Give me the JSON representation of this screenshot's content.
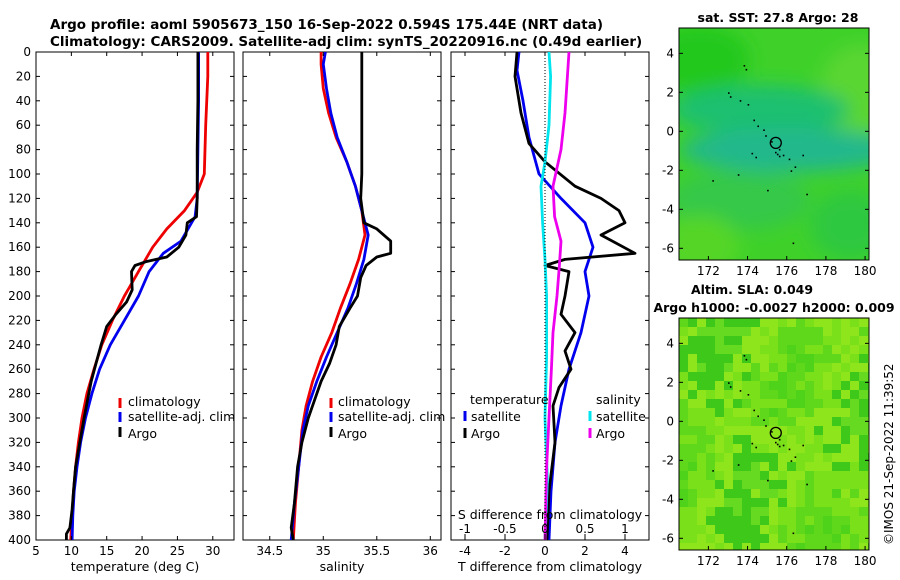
{
  "header": {
    "title_line1": "Argo profile: aoml 5905673_150 16-Sep-2022 0.594S 175.44E (NRT data)",
    "title_line2": "Climatology: CARS2009. Satellite-adj clim: synTS_20220916.nc (0.49d earlier)"
  },
  "watermark": "©IMOS 21-Sep-2022 11:39:52",
  "colors": {
    "climatology": "#ee0000",
    "satellite": "#0000ee",
    "argo": "#000000",
    "sat_salinity": "#00e5ee",
    "argo_salinity": "#ee00ee"
  },
  "chart_data": [
    {
      "type": "line",
      "title": "",
      "xlabel": "temperature (deg C)",
      "ylabel": "",
      "xlim": [
        5,
        33
      ],
      "ylim": [
        400,
        0
      ],
      "xticks": [
        "5",
        "10",
        "15",
        "20",
        "25",
        "30"
      ],
      "yticks": [
        "0",
        "20",
        "40",
        "60",
        "80",
        "100",
        "120",
        "140",
        "160",
        "180",
        "200",
        "220",
        "240",
        "260",
        "280",
        "300",
        "320",
        "340",
        "360",
        "380",
        "400"
      ],
      "legend": [
        "climatology",
        "satellite-adj. clim",
        "Argo"
      ],
      "series": [
        {
          "name": "climatology",
          "color": "#ee0000",
          "points": [
            [
              29.3,
              0
            ],
            [
              29.3,
              20
            ],
            [
              29.0,
              60
            ],
            [
              28.8,
              100
            ],
            [
              27.8,
              115
            ],
            [
              26.0,
              130
            ],
            [
              23.5,
              145
            ],
            [
              21.5,
              160
            ],
            [
              19.5,
              180
            ],
            [
              17.5,
              200
            ],
            [
              15.8,
              220
            ],
            [
              14.3,
              240
            ],
            [
              13.2,
              260
            ],
            [
              12.2,
              280
            ],
            [
              11.5,
              300
            ],
            [
              11.0,
              320
            ],
            [
              10.6,
              340
            ],
            [
              10.3,
              360
            ],
            [
              10.1,
              380
            ],
            [
              9.9,
              400
            ]
          ]
        },
        {
          "name": "satellite-adj. clim",
          "color": "#0000ee",
          "points": [
            [
              28.0,
              0
            ],
            [
              28.0,
              40
            ],
            [
              27.9,
              80
            ],
            [
              27.8,
              120
            ],
            [
              27.5,
              135
            ],
            [
              26.5,
              145
            ],
            [
              25.5,
              155
            ],
            [
              23.0,
              165
            ],
            [
              21.0,
              180
            ],
            [
              19.5,
              200
            ],
            [
              17.5,
              220
            ],
            [
              15.5,
              240
            ],
            [
              14.0,
              260
            ],
            [
              12.9,
              280
            ],
            [
              12.0,
              300
            ],
            [
              11.3,
              320
            ],
            [
              10.8,
              340
            ],
            [
              10.4,
              360
            ],
            [
              10.2,
              380
            ],
            [
              10.1,
              400
            ]
          ]
        },
        {
          "name": "Argo",
          "color": "#000000",
          "points": [
            [
              27.9,
              0
            ],
            [
              27.9,
              40
            ],
            [
              27.8,
              80
            ],
            [
              27.8,
              120
            ],
            [
              27.7,
              135
            ],
            [
              26.4,
              140
            ],
            [
              26.2,
              150
            ],
            [
              25.2,
              160
            ],
            [
              23.5,
              168
            ],
            [
              20.5,
              172
            ],
            [
              19.0,
              175
            ],
            [
              18.5,
              180
            ],
            [
              18.6,
              195
            ],
            [
              17.8,
              205
            ],
            [
              16.3,
              215
            ],
            [
              15.0,
              225
            ],
            [
              14.2,
              240
            ],
            [
              13.5,
              255
            ],
            [
              12.8,
              270
            ],
            [
              12.3,
              285
            ],
            [
              11.8,
              300
            ],
            [
              11.2,
              320
            ],
            [
              10.6,
              340
            ],
            [
              10.3,
              360
            ],
            [
              10.1,
              375
            ],
            [
              9.8,
              390
            ],
            [
              9.3,
              395
            ],
            [
              9.3,
              400
            ]
          ]
        }
      ]
    },
    {
      "type": "line",
      "title": "",
      "xlabel": "salinity",
      "ylabel": "",
      "xlim": [
        34.25,
        36.1
      ],
      "ylim": [
        400,
        0
      ],
      "xticks": [
        "34.5",
        "35",
        "35.5",
        "36"
      ],
      "yticks": [],
      "legend": [
        "climatology",
        "satellite-adj. clim",
        "Argo"
      ],
      "series": [
        {
          "name": "climatology",
          "color": "#ee0000",
          "points": [
            [
              34.98,
              0
            ],
            [
              34.98,
              10
            ],
            [
              35.0,
              30
            ],
            [
              35.05,
              50
            ],
            [
              35.12,
              70
            ],
            [
              35.22,
              90
            ],
            [
              35.3,
              110
            ],
            [
              35.36,
              130
            ],
            [
              35.39,
              150
            ],
            [
              35.33,
              170
            ],
            [
              35.25,
              190
            ],
            [
              35.16,
              210
            ],
            [
              35.08,
              230
            ],
            [
              34.98,
              250
            ],
            [
              34.9,
              270
            ],
            [
              34.84,
              290
            ],
            [
              34.8,
              310
            ],
            [
              34.77,
              340
            ],
            [
              34.74,
              370
            ],
            [
              34.72,
              400
            ]
          ]
        },
        {
          "name": "satellite-adj. clim",
          "color": "#0000ee",
          "points": [
            [
              35.02,
              0
            ],
            [
              35.0,
              10
            ],
            [
              35.03,
              30
            ],
            [
              35.07,
              50
            ],
            [
              35.13,
              70
            ],
            [
              35.22,
              90
            ],
            [
              35.3,
              110
            ],
            [
              35.36,
              130
            ],
            [
              35.42,
              150
            ],
            [
              35.38,
              170
            ],
            [
              35.31,
              190
            ],
            [
              35.23,
              210
            ],
            [
              35.13,
              230
            ],
            [
              35.03,
              250
            ],
            [
              34.94,
              270
            ],
            [
              34.86,
              290
            ],
            [
              34.81,
              310
            ],
            [
              34.77,
              340
            ],
            [
              34.73,
              370
            ],
            [
              34.7,
              400
            ]
          ]
        },
        {
          "name": "Argo",
          "color": "#000000",
          "points": [
            [
              35.36,
              0
            ],
            [
              35.36,
              60
            ],
            [
              35.36,
              100
            ],
            [
              35.35,
              120
            ],
            [
              35.38,
              140
            ],
            [
              35.5,
              145
            ],
            [
              35.63,
              155
            ],
            [
              35.63,
              165
            ],
            [
              35.5,
              168
            ],
            [
              35.4,
              175
            ],
            [
              35.35,
              185
            ],
            [
              35.32,
              200
            ],
            [
              35.25,
              210
            ],
            [
              35.15,
              225
            ],
            [
              35.12,
              240
            ],
            [
              35.06,
              255
            ],
            [
              34.98,
              270
            ],
            [
              34.92,
              285
            ],
            [
              34.86,
              300
            ],
            [
              34.8,
              320
            ],
            [
              34.76,
              340
            ],
            [
              34.73,
              370
            ],
            [
              34.7,
              390
            ],
            [
              34.72,
              400
            ]
          ]
        }
      ]
    },
    {
      "type": "line",
      "title": "",
      "xlabel": "T difference from climatology",
      "x2label": "S difference from climatology",
      "ylabel": "",
      "xlim": [
        -4.7,
        5.2
      ],
      "ylim": [
        400,
        0
      ],
      "xticks": [
        "-4",
        "-2",
        "0",
        "2",
        "4"
      ],
      "x2ticks": [
        "-1",
        "-0.5",
        "0",
        "0.5",
        "1"
      ],
      "yticks": [],
      "legend_headers": [
        "temperature",
        "salinity"
      ],
      "legend": [
        "satellite",
        "Argo",
        "satellite",
        "Argo"
      ],
      "series": [
        {
          "name": "temperature satellite",
          "color": "#0000ee",
          "points": [
            [
              -1.3,
              0
            ],
            [
              -1.4,
              15
            ],
            [
              -1.1,
              40
            ],
            [
              -0.8,
              70
            ],
            [
              -0.3,
              100
            ],
            [
              0.8,
              120
            ],
            [
              2.0,
              140
            ],
            [
              2.4,
              160
            ],
            [
              2.0,
              180
            ],
            [
              2.2,
              200
            ],
            [
              1.8,
              230
            ],
            [
              1.2,
              260
            ],
            [
              0.8,
              290
            ],
            [
              0.5,
              320
            ],
            [
              0.3,
              360
            ],
            [
              0.2,
              400
            ]
          ]
        },
        {
          "name": "temperature Argo",
          "color": "#000000",
          "points": [
            [
              -1.4,
              0
            ],
            [
              -1.5,
              20
            ],
            [
              -1.2,
              50
            ],
            [
              -0.8,
              75
            ],
            [
              0.0,
              90
            ],
            [
              1.5,
              110
            ],
            [
              2.8,
              120
            ],
            [
              3.7,
              130
            ],
            [
              4.0,
              140
            ],
            [
              2.8,
              150
            ],
            [
              4.5,
              165
            ],
            [
              1.0,
              170
            ],
            [
              0,
              175
            ],
            [
              1.2,
              180
            ],
            [
              1.0,
              200
            ],
            [
              0.8,
              215
            ],
            [
              1.5,
              230
            ],
            [
              1.0,
              245
            ],
            [
              1.3,
              260
            ],
            [
              0.7,
              275
            ],
            [
              0.4,
              290
            ],
            [
              0.5,
              320
            ],
            [
              0.2,
              360
            ],
            [
              0.1,
              400
            ]
          ]
        },
        {
          "name": "salinity satellite",
          "color": "#00e5ee",
          "points": [
            [
              0.05,
              0
            ],
            [
              0.07,
              20
            ],
            [
              0.05,
              60
            ],
            [
              0.0,
              90
            ],
            [
              -0.05,
              110
            ],
            [
              -0.03,
              140
            ],
            [
              0.0,
              170
            ],
            [
              0.02,
              200
            ],
            [
              0.02,
              250
            ],
            [
              0.0,
              300
            ],
            [
              0.03,
              350
            ],
            [
              0.0,
              400
            ]
          ]
        },
        {
          "name": "salinity Argo",
          "color": "#ee00ee",
          "points": [
            [
              0.3,
              0
            ],
            [
              0.28,
              20
            ],
            [
              0.25,
              50
            ],
            [
              0.2,
              80
            ],
            [
              0.1,
              110
            ],
            [
              0.12,
              135
            ],
            [
              0.2,
              155
            ],
            [
              0.18,
              175
            ],
            [
              0.15,
              200
            ],
            [
              0.1,
              230
            ],
            [
              0.08,
              260
            ],
            [
              0.05,
              300
            ],
            [
              0.02,
              340
            ],
            [
              0.0,
              400
            ]
          ]
        }
      ]
    },
    {
      "type": "heatmap",
      "title": "sat. SST: 27.8 Argo: 28",
      "xlim": [
        170.5,
        180.2
      ],
      "ylim": [
        -6.6,
        5.3
      ],
      "xticks": [
        "172",
        "174",
        "176",
        "178",
        "180"
      ],
      "yticks": [
        "4",
        "2",
        "0",
        "-2",
        "-4",
        "-6"
      ],
      "marker": {
        "lon": 175.44,
        "lat": -0.594
      }
    },
    {
      "type": "heatmap",
      "title": "Altim. SLA: 0.049",
      "subtitle": "Argo h1000: -0.0027 h2000: 0.009",
      "xlim": [
        170.5,
        180.2
      ],
      "ylim": [
        -6.6,
        5.3
      ],
      "xticks": [
        "172",
        "174",
        "176",
        "178",
        "180"
      ],
      "yticks": [
        "4",
        "2",
        "0",
        "-2",
        "-4",
        "-6"
      ],
      "marker": {
        "lon": 175.44,
        "lat": -0.594
      }
    }
  ]
}
